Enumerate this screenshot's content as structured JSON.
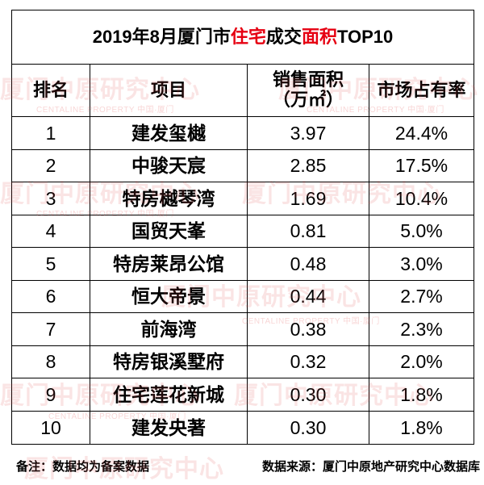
{
  "colors": {
    "highlight": "#e60012",
    "watermark": "#e04646",
    "grid_line": "#000000",
    "text": "#000000",
    "background": "#ffffff"
  },
  "title_highlights": [
    "住宅",
    "面积"
  ],
  "chart_data": {
    "type": "table",
    "title": "2019年8月厦门市住宅成交面积TOP10",
    "columns": [
      "排名",
      "项目",
      "销售面积（万㎡）",
      "市场占有率"
    ],
    "rows": [
      {
        "rank": "1",
        "project": "建发玺樾",
        "area": "3.97",
        "share": "24.4%"
      },
      {
        "rank": "2",
        "project": "中骏天宸",
        "area": "2.85",
        "share": "17.5%"
      },
      {
        "rank": "3",
        "project": "特房樾琴湾",
        "area": "1.69",
        "share": "10.4%"
      },
      {
        "rank": "4",
        "project": "国贸天峯",
        "area": "0.81",
        "share": "5.0%"
      },
      {
        "rank": "5",
        "project": "特房莱昂公馆",
        "area": "0.48",
        "share": "3.0%"
      },
      {
        "rank": "6",
        "project": "恒大帝景",
        "area": "0.44",
        "share": "2.7%"
      },
      {
        "rank": "7",
        "project": "前海湾",
        "area": "0.38",
        "share": "2.3%"
      },
      {
        "rank": "8",
        "project": "特房银溪墅府",
        "area": "0.32",
        "share": "2.0%"
      },
      {
        "rank": "9",
        "project": "住宅莲花新城",
        "area": "0.30",
        "share": "1.8%"
      },
      {
        "rank": "10",
        "project": "建发央著",
        "area": "0.30",
        "share": "1.8%"
      }
    ]
  },
  "footer": {
    "note": "备注：数据均为备案数据",
    "source": "数据来源：厦门中原地产研究中心数据库"
  },
  "watermark": {
    "main": "厦门中原研究中心",
    "sub": "CENTALINE PROPERTY 中国·厦门"
  }
}
